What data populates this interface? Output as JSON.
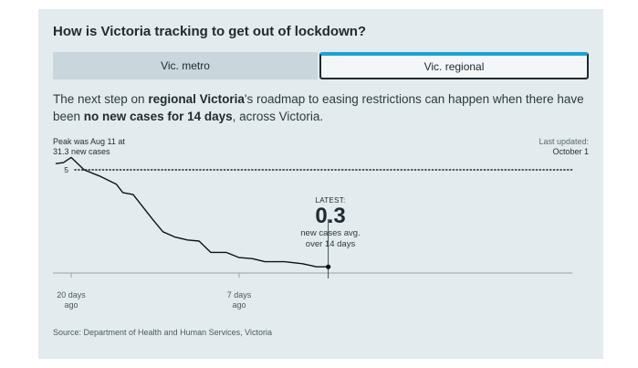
{
  "title": "How is Victoria tracking to get out of lockdown?",
  "tabs": [
    {
      "label": "Vic. metro",
      "selected": false
    },
    {
      "label": "Vic. regional",
      "selected": true
    }
  ],
  "description": {
    "part1": "The next step on ",
    "bold1": "regional Victoria",
    "part2": "'s roadmap to easing restrictions can happen when there have been ",
    "bold2": "no new cases for 14 days",
    "part3": ", across Victoria."
  },
  "peak": {
    "line1": "Peak was Aug 11 at",
    "line2": "31.3 new cases"
  },
  "last_updated": {
    "label": "Last updated:",
    "date": "October 1"
  },
  "threshold_label": "5",
  "latest": {
    "label": "LATEST:",
    "value": "0.3",
    "caption_line1": "new cases avg.",
    "caption_line2": "over 14 days"
  },
  "x_ticks": [
    {
      "line1": "20 days",
      "line2": "ago"
    },
    {
      "line1": "7 days",
      "line2": "ago"
    }
  ],
  "source": "Source: Department of Health and Human Services, Victoria",
  "colors": {
    "accent": "#1aa2d6",
    "line": "#111111",
    "card": "#e3ebee"
  },
  "chart_data": {
    "type": "line",
    "xlabel": "",
    "ylabel": "",
    "ylim": [
      0,
      6.5
    ],
    "threshold": 5,
    "x_tick_values": [
      -20,
      -7
    ],
    "series": [
      {
        "x": [
          -21.2,
          -20.6,
          -20,
          -19.0,
          -17.8,
          -16.5,
          -16.0,
          -15.2,
          -13.7,
          -12.9,
          -12.0,
          -11.0,
          -10.1,
          -9.2,
          -8.0,
          -7.0,
          -6.0,
          -5.0,
          -4.2,
          -3.5,
          -2.1,
          -1.0,
          -0.1
        ],
        "y": [
          5.3,
          5.35,
          5.6,
          5.0,
          4.7,
          4.3,
          3.9,
          3.8,
          2.6,
          2.0,
          1.75,
          1.6,
          1.55,
          1.0,
          1.0,
          0.75,
          0.7,
          0.55,
          0.55,
          0.55,
          0.45,
          0.3,
          0.3
        ]
      }
    ]
  }
}
